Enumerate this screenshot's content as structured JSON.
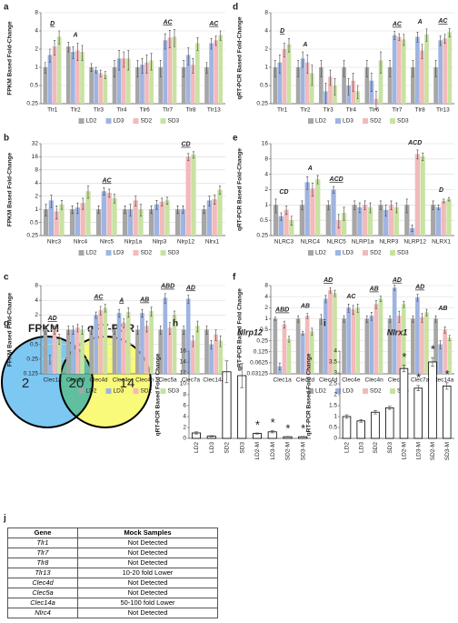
{
  "chart_data": [
    {
      "panel": "a",
      "type": "bar",
      "ylabel": "FPKM Based Fold-Change",
      "ylog": true,
      "grid": true,
      "legend": true,
      "ylim": [
        0.25,
        8
      ],
      "yticks": [
        0.25,
        0.5,
        1,
        2,
        4,
        8
      ],
      "categories": [
        "Tlr1",
        "Tlr2",
        "Tlr3",
        "Tlr4",
        "Tlr6",
        "Tlr7",
        "Tlr8",
        "Tlr13"
      ],
      "annotations": [
        "D",
        "A",
        null,
        null,
        null,
        "AC",
        null,
        "AC"
      ],
      "annotation_underline": [
        true,
        false,
        false,
        false,
        false,
        true,
        false,
        true
      ],
      "series": [
        {
          "name": "LD2",
          "color": "#a6a6a6",
          "values": [
            1,
            2.2,
            1,
            1,
            1,
            1,
            1,
            1
          ],
          "errors": [
            0.2,
            0.4,
            0.15,
            0.3,
            0.3,
            0.3,
            0.3,
            0.2
          ]
        },
        {
          "name": "LD3",
          "color": "#9fb4e2",
          "values": [
            1.6,
            1.8,
            0.9,
            1.4,
            1.1,
            2.8,
            1.6,
            2.5
          ],
          "errors": [
            0.4,
            0.4,
            0.1,
            0.5,
            0.3,
            0.8,
            0.5,
            0.5
          ]
        },
        {
          "name": "SD2",
          "color": "#f2baba",
          "values": [
            2.2,
            1.9,
            0.8,
            1.4,
            1.2,
            3.1,
            1.1,
            2.8
          ],
          "errors": [
            0.6,
            0.6,
            0.1,
            0.4,
            0.4,
            1,
            0.3,
            0.5
          ]
        },
        {
          "name": "SD3",
          "color": "#c8e2a2",
          "values": [
            3.2,
            1.8,
            0.75,
            1.4,
            1.3,
            3.2,
            2.5,
            3.4
          ],
          "errors": [
            0.8,
            0.5,
            0.1,
            0.5,
            0.4,
            1,
            0.6,
            0.6
          ]
        }
      ]
    },
    {
      "panel": "b",
      "type": "bar",
      "ylabel": "FPKM Based Fold-Change",
      "ylog": true,
      "grid": true,
      "legend": true,
      "ylim": [
        0.25,
        32
      ],
      "yticks": [
        0.25,
        0.5,
        1,
        2,
        4,
        8,
        16,
        32
      ],
      "categories": [
        "Nlrc3",
        "Nlrc4",
        "Nlrc5",
        "Nlrp1a",
        "Nlrp3",
        "Nlrp12",
        "Nlrx1"
      ],
      "annotations": [
        null,
        null,
        "AC",
        null,
        null,
        "CD",
        null
      ],
      "annotation_underline": [
        false,
        false,
        true,
        false,
        false,
        true,
        false
      ],
      "series": [
        {
          "name": "LD2",
          "color": "#a6a6a6",
          "values": [
            1,
            1,
            1,
            1,
            1,
            1,
            1
          ],
          "errors": [
            0.3,
            0.2,
            0.2,
            0.2,
            0.2,
            0.2,
            0.2
          ]
        },
        {
          "name": "LD3",
          "color": "#9fb4e2",
          "values": [
            1.6,
            1.1,
            2.6,
            1,
            1.3,
            1,
            1.6
          ],
          "errors": [
            0.5,
            0.3,
            0.5,
            0.3,
            0.3,
            0.2,
            0.4
          ]
        },
        {
          "name": "SD2",
          "color": "#f2baba",
          "values": [
            0.9,
            1.4,
            2.4,
            1.6,
            1.5,
            16,
            1.7
          ],
          "errors": [
            0.3,
            0.4,
            0.5,
            0.4,
            0.3,
            3,
            0.4
          ]
        },
        {
          "name": "SD3",
          "color": "#c8e2a2",
          "values": [
            1.3,
            2.6,
            1.8,
            1,
            1.6,
            18,
            2.8
          ],
          "errors": [
            0.3,
            0.8,
            0.4,
            0.3,
            0.3,
            3,
            0.6
          ]
        }
      ]
    },
    {
      "panel": "c",
      "type": "bar",
      "ylabel": "FPKM Based Fold-Change",
      "ylog": true,
      "grid": true,
      "legend": true,
      "ylim": [
        0.125,
        8
      ],
      "yticks": [
        0.125,
        0.25,
        0.5,
        1,
        2,
        4,
        8
      ],
      "categories": [
        "Clec1a",
        "Clec2d",
        "Clec4d",
        "Clec4e",
        "Clec4n",
        "Clec5a",
        "Clec7a",
        "Clec14a"
      ],
      "annotations": [
        "AD",
        null,
        "AC",
        "A",
        "AB",
        "ABD",
        "AD",
        null
      ],
      "annotation_underline": [
        true,
        false,
        true,
        true,
        true,
        true,
        true,
        false
      ],
      "series": [
        {
          "name": "LD2",
          "color": "#a6a6a6",
          "values": [
            1,
            1,
            1,
            1,
            1,
            1,
            1,
            1
          ],
          "errors": [
            0.2,
            0.2,
            0.2,
            0.2,
            0.2,
            0.2,
            0.2,
            0.2
          ]
        },
        {
          "name": "LD3",
          "color": "#9fb4e2",
          "values": [
            0.25,
            1,
            2,
            2.2,
            2.2,
            4.5,
            4.3,
            0.5
          ],
          "errors": [
            0.05,
            0.2,
            0.3,
            0.4,
            0.4,
            1,
            0.8,
            0.1
          ]
        },
        {
          "name": "SD2",
          "color": "#f2baba",
          "values": [
            1,
            1.1,
            2.5,
            1.4,
            1.2,
            1.1,
            0.6,
            0.8
          ],
          "errors": [
            0.2,
            0.2,
            0.5,
            0.3,
            0.3,
            0.3,
            0.15,
            0.2
          ]
        },
        {
          "name": "SD3",
          "color": "#c8e2a2",
          "values": [
            0.65,
            1,
            2.8,
            2.3,
            2.4,
            2,
            1.2,
            0.6
          ],
          "errors": [
            0.15,
            0.2,
            0.5,
            0.5,
            0.5,
            0.4,
            0.3,
            0.15
          ]
        }
      ]
    },
    {
      "panel": "d",
      "type": "bar",
      "ylabel": "qRT-PCR Based Fold-Change",
      "ylog": true,
      "grid": true,
      "legend": true,
      "ylim": [
        0.25,
        8
      ],
      "yticks": [
        0.25,
        0.5,
        1,
        2,
        4,
        8
      ],
      "categories": [
        "Tlr1",
        "Tlr2",
        "Tlr3",
        "Tlr4",
        "Tlr6",
        "Tlr7",
        "Tlr8",
        "Tlr13"
      ],
      "annotations": [
        "D",
        "A",
        null,
        null,
        null,
        "AC",
        "A",
        "AC"
      ],
      "annotation_underline": [
        true,
        false,
        false,
        false,
        false,
        true,
        false,
        true
      ],
      "series": [
        {
          "name": "LD2",
          "color": "#a6a6a6",
          "values": [
            1,
            1,
            1,
            1,
            1,
            1,
            1,
            1
          ],
          "errors": [
            0.3,
            0.3,
            0.3,
            0.3,
            0.3,
            0.3,
            0.3,
            0.3
          ]
        },
        {
          "name": "LD3",
          "color": "#9fb4e2",
          "values": [
            1.2,
            1.4,
            0.4,
            0.5,
            0.6,
            3.4,
            3.2,
            2.8
          ],
          "errors": [
            0.4,
            0.4,
            0.15,
            0.15,
            0.2,
            0.5,
            0.6,
            0.5
          ]
        },
        {
          "name": "SD2",
          "color": "#f2baba",
          "values": [
            2,
            1.2,
            0.7,
            0.6,
            0.3,
            3.2,
            1.9,
            3
          ],
          "errors": [
            0.5,
            0.4,
            0.2,
            0.2,
            0.1,
            0.4,
            0.5,
            0.5
          ]
        },
        {
          "name": "SD3",
          "color": "#c8e2a2",
          "values": [
            2.4,
            0.8,
            0.5,
            0.4,
            1.3,
            2.9,
            3.5,
            3.8
          ],
          "errors": [
            0.6,
            0.3,
            0.15,
            0.1,
            0.5,
            0.6,
            0.8,
            0.6
          ]
        }
      ]
    },
    {
      "panel": "e",
      "type": "bar",
      "ylabel": "qRT-PCR Based Fold-Change",
      "ylog": true,
      "grid": true,
      "legend": true,
      "ylim": [
        0.25,
        16
      ],
      "yticks": [
        0.25,
        0.5,
        1,
        2,
        4,
        8,
        16
      ],
      "categories": [
        "NLRC3",
        "NLRC4",
        "NLRC5",
        "NLRP1a",
        "NLRP3",
        "NLRP12",
        "NLRX1"
      ],
      "annotations": [
        "CD",
        "A",
        "ACD",
        null,
        null,
        "ACD",
        "D"
      ],
      "annotation_underline": [
        false,
        false,
        true,
        false,
        false,
        false,
        false
      ],
      "series": [
        {
          "name": "LD2",
          "color": "#a6a6a6",
          "values": [
            1,
            1,
            1,
            1,
            1,
            1,
            1
          ],
          "errors": [
            0.3,
            0.2,
            0.2,
            0.2,
            0.2,
            0.3,
            0.2
          ]
        },
        {
          "name": "LD3",
          "color": "#9fb4e2",
          "values": [
            0.6,
            2.8,
            2,
            0.9,
            0.8,
            0.35,
            0.9
          ],
          "errors": [
            0.1,
            0.8,
            0.3,
            0.2,
            0.2,
            0.05,
            0.1
          ]
        },
        {
          "name": "SD2",
          "color": "#f2baba",
          "values": [
            0.8,
            2.1,
            0.5,
            1,
            1,
            10,
            1.2
          ],
          "errors": [
            0.15,
            0.6,
            0.15,
            0.2,
            0.2,
            2,
            0.1
          ]
        },
        {
          "name": "SD3",
          "color": "#c8e2a2",
          "values": [
            0.5,
            3.2,
            0.7,
            0.9,
            0.9,
            9,
            1.3
          ],
          "errors": [
            0.1,
            0.6,
            0.2,
            0.2,
            0.2,
            1.5,
            0.1
          ]
        }
      ]
    },
    {
      "panel": "f",
      "type": "bar",
      "ylabel": "qRT-PCR Based Fold Change",
      "ylog": true,
      "grid": true,
      "legend": true,
      "ylim": [
        0.03125,
        8
      ],
      "yticks": [
        0.03125,
        0.0625,
        0.125,
        0.25,
        0.5,
        1,
        2,
        4,
        8
      ],
      "categories": [
        "Clec1a",
        "Clec2d",
        "Clec4d",
        "Clec4e",
        "Clec4n",
        "Clec5a",
        "Clec7a",
        "Clec14a"
      ],
      "annotations": [
        "ABD",
        "AB",
        "AD",
        "AC",
        "AB",
        "AD",
        "AD",
        "AB"
      ],
      "annotation_underline": [
        true,
        false,
        true,
        false,
        true,
        true,
        true,
        false
      ],
      "series": [
        {
          "name": "LD2",
          "color": "#a6a6a6",
          "values": [
            1,
            1,
            1,
            1,
            1,
            1,
            1,
            1
          ],
          "errors": [
            0.1,
            0.2,
            0.3,
            0.2,
            0.2,
            0.2,
            0.2,
            0.2
          ]
        },
        {
          "name": "LD3",
          "color": "#9fb4e2",
          "values": [
            0.05,
            0.4,
            3.5,
            2,
            1.2,
            7,
            3.8,
            0.2
          ],
          "errors": [
            0.01,
            0.05,
            0.8,
            0.5,
            0.3,
            1.2,
            0.8,
            0.05
          ]
        },
        {
          "name": "SD2",
          "color": "#f2baba",
          "values": [
            0.7,
            1.2,
            6,
            1.8,
            2.5,
            1.2,
            1.1,
            0.5
          ],
          "errors": [
            0.15,
            0.2,
            1,
            0.5,
            0.6,
            0.4,
            0.3,
            0.1
          ]
        },
        {
          "name": "SD3",
          "color": "#c8e2a2",
          "values": [
            0.28,
            0.45,
            5,
            2,
            3.5,
            2.5,
            1.5,
            0.3
          ],
          "errors": [
            0.05,
            0.1,
            1,
            0.5,
            0.6,
            0.5,
            0.3,
            0.05
          ]
        }
      ]
    },
    {
      "panel": "h",
      "type": "bar",
      "title": "Nlrp12",
      "ylabel": "qRT-PCR Based Fold Change",
      "ylog": false,
      "grid": false,
      "legend": false,
      "ylim": [
        0,
        16
      ],
      "yticks": [
        0,
        2,
        4,
        6,
        8,
        10,
        12,
        14,
        16
      ],
      "categories": [
        "LD2",
        "LD3",
        "SD2",
        "SD3",
        "LD2-M",
        "LD3-M",
        "SD2-M",
        "SD3-M"
      ],
      "annotations": [
        null,
        null,
        null,
        null,
        "*",
        "*",
        "*",
        "*"
      ],
      "color": "#ffffff",
      "edgecolor": "#000000",
      "values": [
        1,
        0.4,
        12.2,
        11.5,
        0.9,
        1.2,
        0.3,
        0.3
      ],
      "errors": [
        0.2,
        0.1,
        2,
        2.2,
        0.1,
        0.2,
        0.05,
        0.05
      ]
    },
    {
      "panel": "i",
      "type": "bar",
      "title": "Nlrx1",
      "ylabel": "qRT-PCR Based Fold Change",
      "ylog": false,
      "grid": false,
      "legend": false,
      "ylim": [
        0,
        4
      ],
      "yticks": [
        0,
        0.5,
        1,
        1.5,
        2,
        2.5,
        3,
        3.5,
        4
      ],
      "categories": [
        "LD2",
        "LD3",
        "SD2",
        "SD3",
        "LD2-M",
        "LD3-M",
        "SD2-M",
        "SD3-M"
      ],
      "annotations": [
        null,
        null,
        null,
        null,
        "*",
        "*",
        "*",
        "*"
      ],
      "color": "#ffffff",
      "edgecolor": "#000000",
      "values": [
        1,
        0.8,
        1.2,
        1.4,
        3.2,
        2.3,
        3.5,
        2.4
      ],
      "errors": [
        0.08,
        0.06,
        0.08,
        0.07,
        0.15,
        0.12,
        0.2,
        0.15
      ]
    }
  ],
  "venn": {
    "panel": "g",
    "sets": [
      "FPKM",
      "qRT-PCR"
    ],
    "counts": [
      2,
      20,
      14
    ],
    "colors": [
      "#7dc7f3",
      "#f9f97a",
      "#5fbf9f"
    ]
  },
  "table": {
    "panel": "j",
    "header": [
      "Gene",
      "Mock Samples"
    ],
    "rows": [
      [
        "Tlr1",
        "Not Detected"
      ],
      [
        "Tlr7",
        "Not Detected"
      ],
      [
        "Tlr8",
        "Not Detected"
      ],
      [
        "Tlr13",
        "10-20 fold Lower"
      ],
      [
        "Clec4d",
        "Not Detected"
      ],
      [
        "Clec5a",
        "Not Detected"
      ],
      [
        "Clec14a",
        "50-100 fold Lower"
      ],
      [
        "Nlrc4",
        "Not Detected"
      ]
    ]
  }
}
